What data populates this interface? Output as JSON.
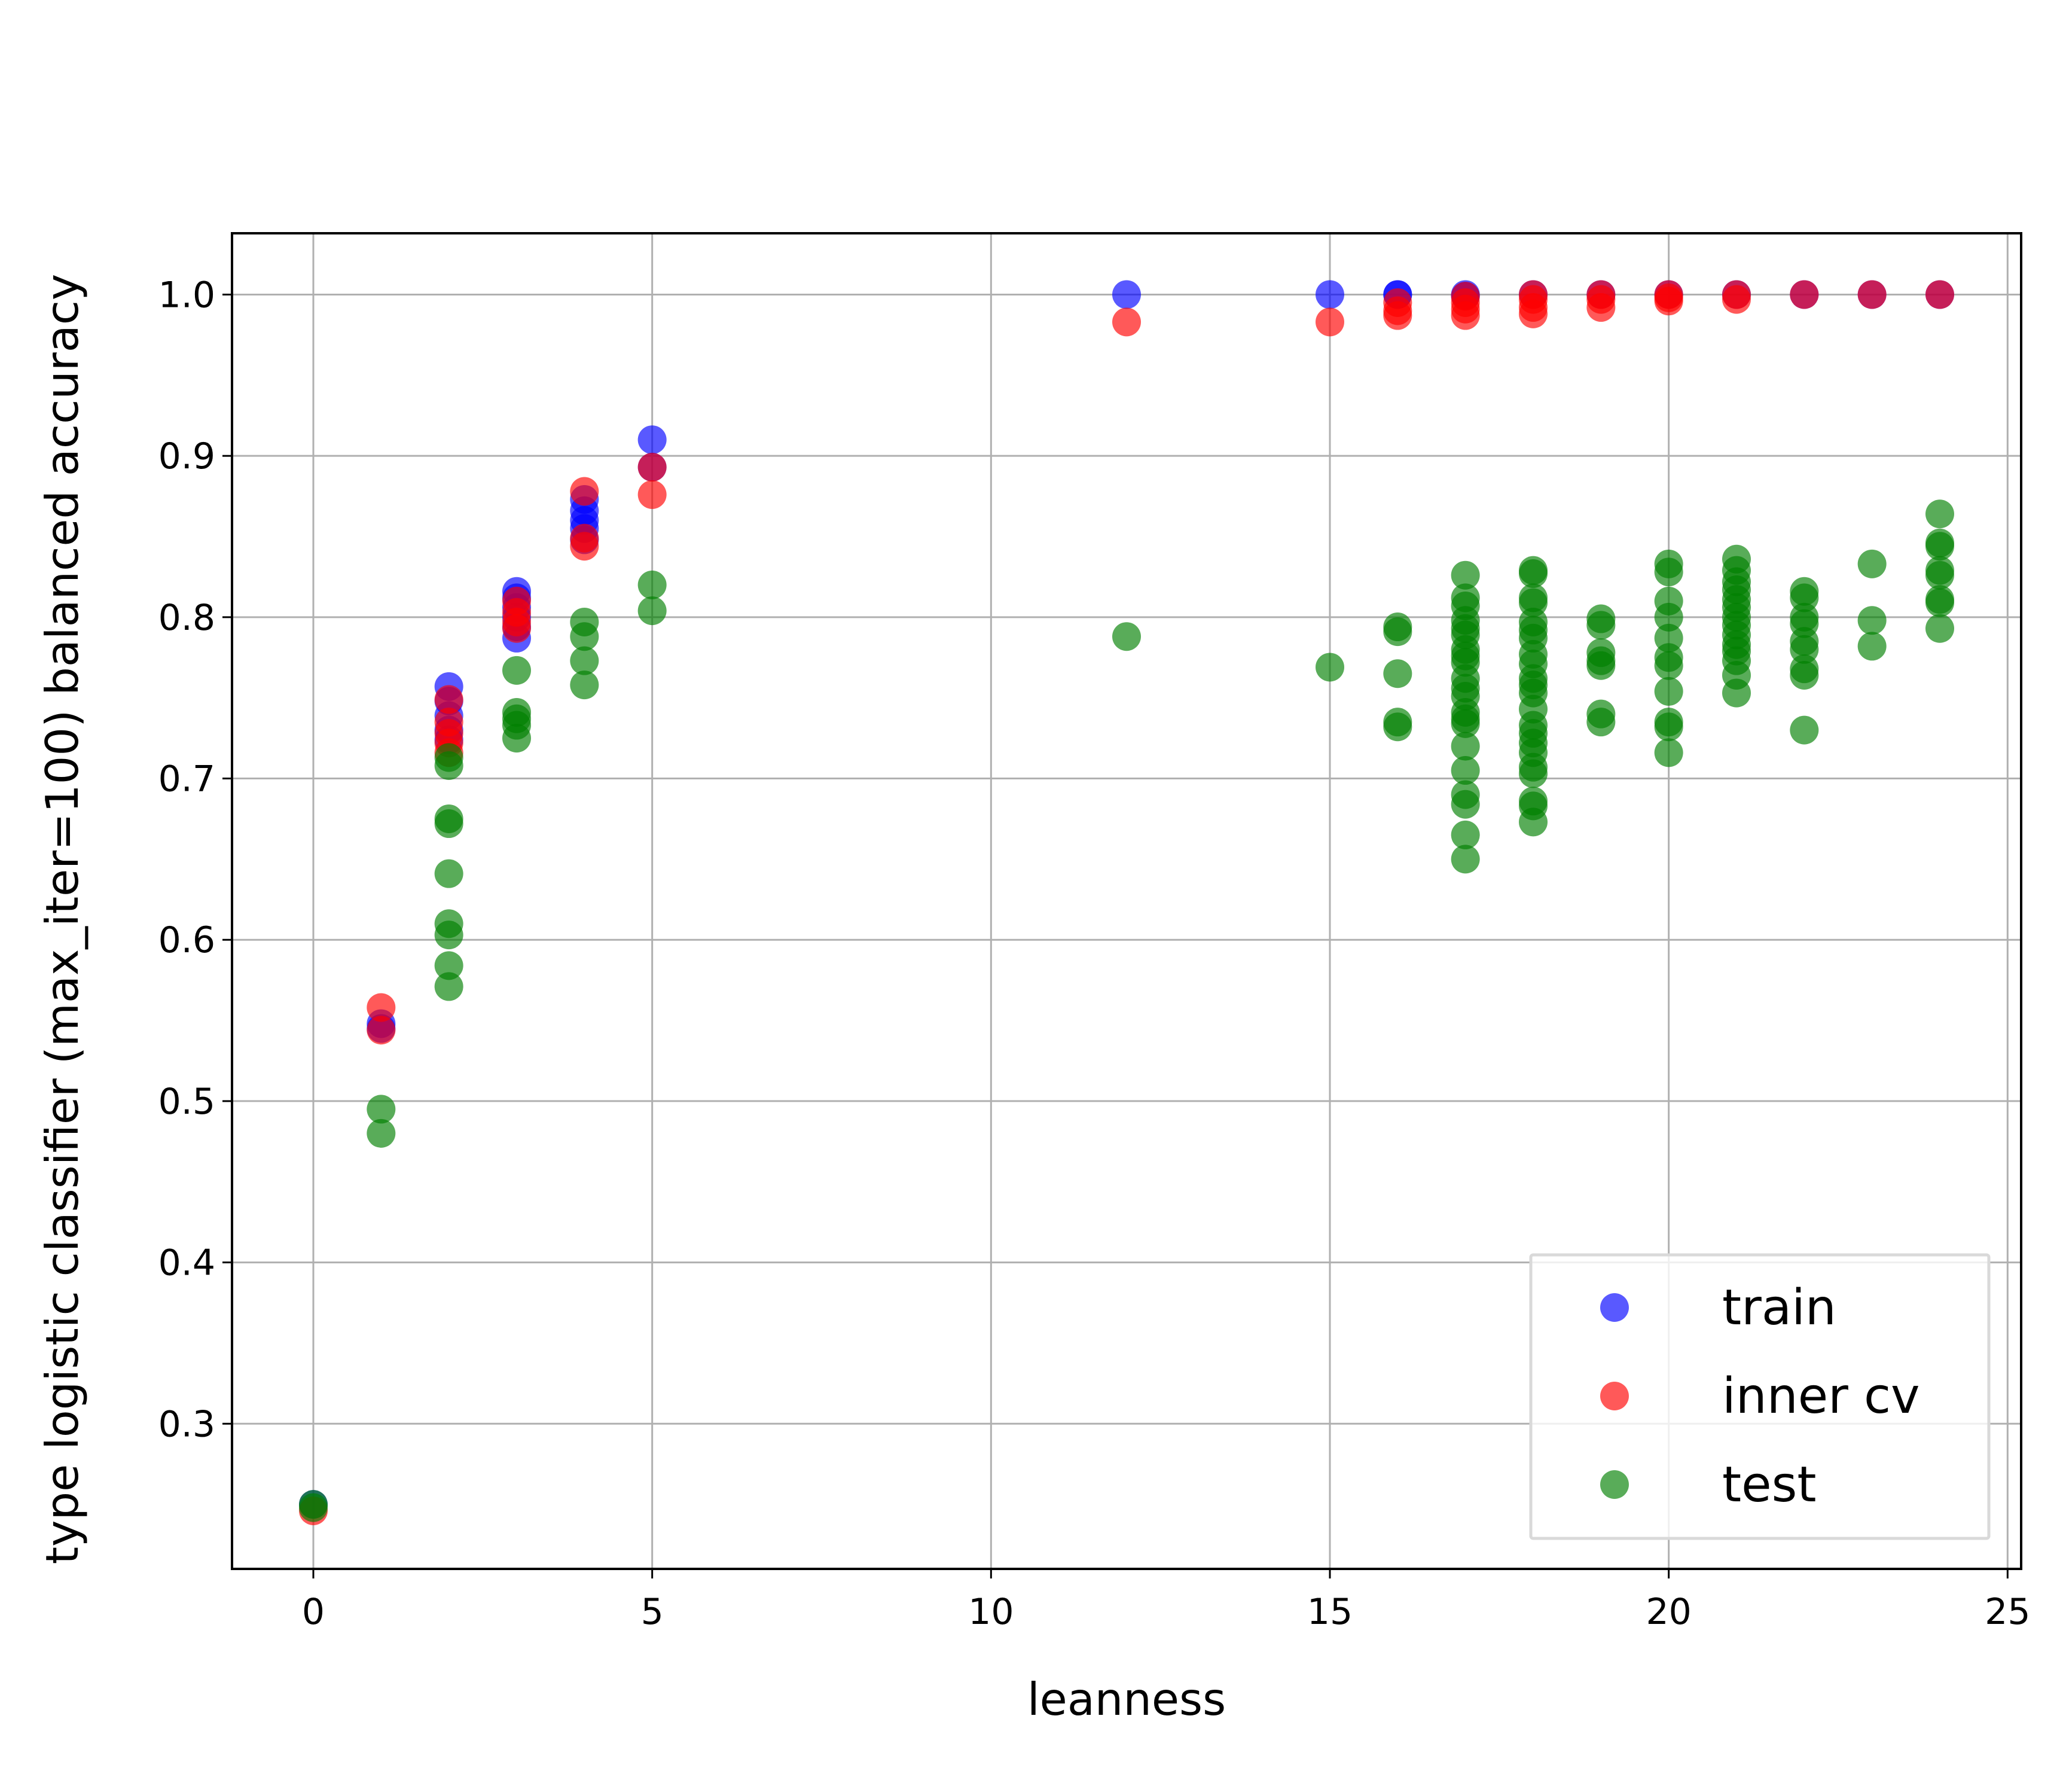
{
  "chart_data": {
    "type": "scatter",
    "title": "",
    "xlabel": "leanness",
    "ylabel": "type logistic classifier (max_iter=100) balanced accuracy",
    "xlim": [
      -1.2,
      25.2
    ],
    "ylim": [
      0.21,
      1.038
    ],
    "xticks": [
      0,
      5,
      10,
      15,
      20,
      25
    ],
    "yticks": [
      0.3,
      0.4,
      0.5,
      0.6,
      0.7,
      0.8,
      0.9,
      1.0
    ],
    "xtick_labels": [
      "0",
      "5",
      "10",
      "15",
      "20",
      "25"
    ],
    "ytick_labels": [
      "0.3",
      "0.4",
      "0.5",
      "0.6",
      "0.7",
      "0.8",
      "0.9",
      "1.0"
    ],
    "grid": true,
    "legend_position": "lower-right",
    "series": [
      {
        "name": "train",
        "color": "#0000ff",
        "points": [
          [
            0,
            0.25
          ],
          [
            1,
            0.548
          ],
          [
            1,
            0.545
          ],
          [
            2,
            0.757
          ],
          [
            2,
            0.748
          ],
          [
            2,
            0.739
          ],
          [
            2,
            0.73
          ],
          [
            2,
            0.724
          ],
          [
            3,
            0.816
          ],
          [
            3,
            0.812
          ],
          [
            3,
            0.806
          ],
          [
            3,
            0.8
          ],
          [
            3,
            0.794
          ],
          [
            3,
            0.787
          ],
          [
            4,
            0.873
          ],
          [
            4,
            0.866
          ],
          [
            4,
            0.86
          ],
          [
            4,
            0.855
          ],
          [
            4,
            0.848
          ],
          [
            5,
            0.91
          ],
          [
            5,
            0.893
          ],
          [
            12,
            1.0
          ],
          [
            15,
            1.0
          ],
          [
            16,
            1.0
          ],
          [
            16,
            1.0
          ],
          [
            17,
            1.0
          ],
          [
            17,
            0.999
          ],
          [
            18,
            1.0
          ],
          [
            19,
            1.0
          ],
          [
            20,
            1.0
          ],
          [
            21,
            1.0
          ],
          [
            22,
            1.0
          ],
          [
            23,
            1.0
          ],
          [
            24,
            1.0
          ]
        ]
      },
      {
        "name": "inner cv",
        "color": "#ff0000",
        "points": [
          [
            0,
            0.246
          ],
          [
            1,
            0.558
          ],
          [
            1,
            0.544
          ],
          [
            2,
            0.749
          ],
          [
            2,
            0.735
          ],
          [
            2,
            0.728
          ],
          [
            2,
            0.722
          ],
          [
            2,
            0.716
          ],
          [
            3,
            0.81
          ],
          [
            3,
            0.803
          ],
          [
            3,
            0.797
          ],
          [
            3,
            0.793
          ],
          [
            4,
            0.878
          ],
          [
            4,
            0.849
          ],
          [
            4,
            0.844
          ],
          [
            5,
            0.893
          ],
          [
            5,
            0.876
          ],
          [
            12,
            0.983
          ],
          [
            15,
            0.983
          ],
          [
            16,
            0.995
          ],
          [
            16,
            0.99
          ],
          [
            16,
            0.987
          ],
          [
            17,
            0.999
          ],
          [
            17,
            0.995
          ],
          [
            17,
            0.991
          ],
          [
            17,
            0.987
          ],
          [
            18,
            1.0
          ],
          [
            18,
            0.997
          ],
          [
            18,
            0.992
          ],
          [
            18,
            0.988
          ],
          [
            19,
            1.0
          ],
          [
            19,
            0.997
          ],
          [
            19,
            0.992
          ],
          [
            20,
            1.0
          ],
          [
            20,
            0.998
          ],
          [
            20,
            0.996
          ],
          [
            21,
            1.0
          ],
          [
            21,
            0.997
          ],
          [
            22,
            1.0
          ],
          [
            23,
            1.0
          ],
          [
            24,
            1.0
          ]
        ]
      },
      {
        "name": "test",
        "color": "#008000",
        "points": [
          [
            0,
            0.25
          ],
          [
            0,
            0.248
          ],
          [
            1,
            0.495
          ],
          [
            1,
            0.48
          ],
          [
            2,
            0.708
          ],
          [
            2,
            0.713
          ],
          [
            2,
            0.675
          ],
          [
            2,
            0.672
          ],
          [
            2,
            0.641
          ],
          [
            2,
            0.61
          ],
          [
            2,
            0.603
          ],
          [
            2,
            0.584
          ],
          [
            2,
            0.571
          ],
          [
            3,
            0.767
          ],
          [
            3,
            0.741
          ],
          [
            3,
            0.737
          ],
          [
            3,
            0.733
          ],
          [
            3,
            0.725
          ],
          [
            4,
            0.797
          ],
          [
            4,
            0.788
          ],
          [
            4,
            0.773
          ],
          [
            4,
            0.758
          ],
          [
            5,
            0.82
          ],
          [
            5,
            0.804
          ],
          [
            12,
            0.788
          ],
          [
            15,
            0.769
          ],
          [
            16,
            0.794
          ],
          [
            16,
            0.791
          ],
          [
            16,
            0.765
          ],
          [
            16,
            0.735
          ],
          [
            16,
            0.732
          ],
          [
            17,
            0.826
          ],
          [
            17,
            0.812
          ],
          [
            17,
            0.807
          ],
          [
            17,
            0.798
          ],
          [
            17,
            0.793
          ],
          [
            17,
            0.789
          ],
          [
            17,
            0.78
          ],
          [
            17,
            0.776
          ],
          [
            17,
            0.772
          ],
          [
            17,
            0.762
          ],
          [
            17,
            0.756
          ],
          [
            17,
            0.751
          ],
          [
            17,
            0.741
          ],
          [
            17,
            0.737
          ],
          [
            17,
            0.734
          ],
          [
            17,
            0.72
          ],
          [
            17,
            0.705
          ],
          [
            17,
            0.69
          ],
          [
            17,
            0.684
          ],
          [
            17,
            0.665
          ],
          [
            17,
            0.65
          ],
          [
            18,
            0.829
          ],
          [
            18,
            0.827
          ],
          [
            18,
            0.812
          ],
          [
            18,
            0.809
          ],
          [
            18,
            0.797
          ],
          [
            18,
            0.792
          ],
          [
            18,
            0.787
          ],
          [
            18,
            0.777
          ],
          [
            18,
            0.771
          ],
          [
            18,
            0.762
          ],
          [
            18,
            0.758
          ],
          [
            18,
            0.753
          ],
          [
            18,
            0.743
          ],
          [
            18,
            0.733
          ],
          [
            18,
            0.728
          ],
          [
            18,
            0.722
          ],
          [
            18,
            0.716
          ],
          [
            18,
            0.707
          ],
          [
            18,
            0.703
          ],
          [
            18,
            0.686
          ],
          [
            18,
            0.683
          ],
          [
            18,
            0.673
          ],
          [
            19,
            0.799
          ],
          [
            19,
            0.795
          ],
          [
            19,
            0.778
          ],
          [
            19,
            0.773
          ],
          [
            19,
            0.77
          ],
          [
            19,
            0.74
          ],
          [
            19,
            0.735
          ],
          [
            20,
            0.833
          ],
          [
            20,
            0.828
          ],
          [
            20,
            0.81
          ],
          [
            20,
            0.8
          ],
          [
            20,
            0.787
          ],
          [
            20,
            0.775
          ],
          [
            20,
            0.77
          ],
          [
            20,
            0.754
          ],
          [
            20,
            0.735
          ],
          [
            20,
            0.732
          ],
          [
            20,
            0.716
          ],
          [
            21,
            0.836
          ],
          [
            21,
            0.829
          ],
          [
            21,
            0.822
          ],
          [
            21,
            0.817
          ],
          [
            21,
            0.811
          ],
          [
            21,
            0.806
          ],
          [
            21,
            0.8
          ],
          [
            21,
            0.795
          ],
          [
            21,
            0.789
          ],
          [
            21,
            0.783
          ],
          [
            21,
            0.779
          ],
          [
            21,
            0.773
          ],
          [
            21,
            0.764
          ],
          [
            21,
            0.753
          ],
          [
            22,
            0.816
          ],
          [
            22,
            0.812
          ],
          [
            22,
            0.8
          ],
          [
            22,
            0.796
          ],
          [
            22,
            0.785
          ],
          [
            22,
            0.78
          ],
          [
            22,
            0.768
          ],
          [
            22,
            0.764
          ],
          [
            22,
            0.73
          ],
          [
            23,
            0.833
          ],
          [
            23,
            0.798
          ],
          [
            23,
            0.782
          ],
          [
            24,
            0.864
          ],
          [
            24,
            0.846
          ],
          [
            24,
            0.844
          ],
          [
            24,
            0.829
          ],
          [
            24,
            0.826
          ],
          [
            24,
            0.811
          ],
          [
            24,
            0.809
          ],
          [
            24,
            0.793
          ]
        ]
      }
    ]
  }
}
